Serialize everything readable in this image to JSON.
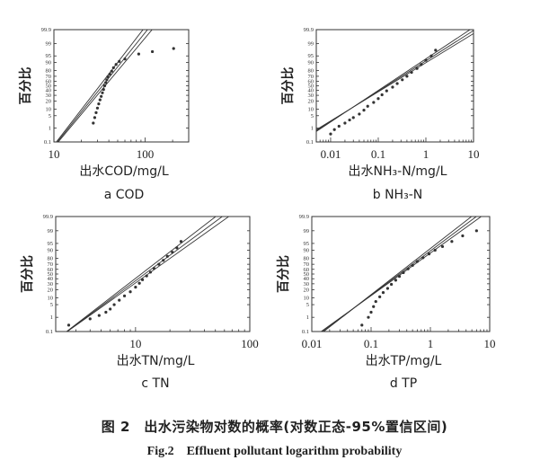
{
  "figure": {
    "caption_cn": "图 2　出水污染物对数的概率(对数正态-95%置信区间)",
    "caption_en": "Fig.2　Effluent pollutant logarithm probability"
  },
  "chart_data": [
    {
      "type": "scatter",
      "subtitle": "a COD",
      "xlabel": "出水COD/mg/L",
      "ylabel": "百分比",
      "x_scale": "log",
      "y_scale": "normal-probability",
      "xlim": [
        10,
        300
      ],
      "ylim": [
        0.1,
        99.9
      ],
      "x_ticks": [
        10,
        100
      ],
      "x_tick_labels": [
        "10",
        "100"
      ],
      "y_ticks": [
        0.1,
        1,
        5,
        10,
        20,
        30,
        40,
        50,
        60,
        70,
        80,
        90,
        95,
        99,
        99.9
      ],
      "y_tick_labels": [
        "0.1",
        "1",
        "5",
        "10",
        "20",
        "30",
        "40",
        "50",
        "60",
        "70",
        "80",
        "90",
        "95",
        "99",
        "99.9"
      ],
      "fit": {
        "median": 34,
        "sigma_log10": 0.16
      },
      "points": [
        [
          27,
          2
        ],
        [
          28,
          4
        ],
        [
          29,
          7
        ],
        [
          30,
          11
        ],
        [
          31,
          16
        ],
        [
          32,
          22
        ],
        [
          33,
          28
        ],
        [
          34,
          35
        ],
        [
          35,
          42
        ],
        [
          36,
          50
        ],
        [
          37,
          57
        ],
        [
          38,
          63
        ],
        [
          39,
          69
        ],
        [
          41,
          74
        ],
        [
          43,
          79
        ],
        [
          45,
          84
        ],
        [
          48,
          88
        ],
        [
          52,
          91
        ],
        [
          60,
          93
        ],
        [
          85,
          96
        ],
        [
          120,
          97
        ],
        [
          205,
          98
        ]
      ]
    },
    {
      "type": "scatter",
      "subtitle": "b NH₃-N",
      "xlabel": "出水NH₃-N/mg/L",
      "ylabel": "百分比",
      "x_scale": "log",
      "y_scale": "normal-probability",
      "xlim": [
        0.005,
        10
      ],
      "ylim": [
        0.1,
        99.9
      ],
      "x_ticks": [
        0.01,
        0.1,
        1,
        10
      ],
      "x_tick_labels": [
        "0.01",
        "0.1",
        "1",
        "10"
      ],
      "y_ticks": [
        0.1,
        1,
        5,
        10,
        20,
        30,
        40,
        50,
        60,
        70,
        80,
        90,
        95,
        99,
        99.9
      ],
      "y_tick_labels": [
        "0.1",
        "1",
        "5",
        "10",
        "20",
        "30",
        "40",
        "50",
        "60",
        "70",
        "80",
        "90",
        "95",
        "99",
        "99.9"
      ],
      "fit": {
        "median": 0.15,
        "sigma_log10": 0.6
      },
      "points": [
        [
          0.01,
          0.4
        ],
        [
          0.012,
          0.8
        ],
        [
          0.015,
          1.3
        ],
        [
          0.02,
          2
        ],
        [
          0.025,
          3
        ],
        [
          0.03,
          4
        ],
        [
          0.04,
          6
        ],
        [
          0.05,
          9
        ],
        [
          0.06,
          13
        ],
        [
          0.08,
          18
        ],
        [
          0.1,
          24
        ],
        [
          0.12,
          31
        ],
        [
          0.15,
          39
        ],
        [
          0.2,
          47
        ],
        [
          0.25,
          55
        ],
        [
          0.32,
          63
        ],
        [
          0.4,
          70
        ],
        [
          0.5,
          77
        ],
        [
          0.65,
          83
        ],
        [
          0.8,
          88
        ],
        [
          1.0,
          92
        ],
        [
          1.3,
          95
        ],
        [
          1.6,
          97.5
        ]
      ]
    },
    {
      "type": "scatter",
      "subtitle": "c TN",
      "xlabel": "出水TN/mg/L",
      "ylabel": "百分比",
      "x_scale": "log",
      "y_scale": "normal-probability",
      "xlim": [
        2,
        100
      ],
      "ylim": [
        0.1,
        99.9
      ],
      "x_ticks": [
        10,
        100
      ],
      "x_tick_labels": [
        "10",
        "100"
      ],
      "y_ticks": [
        0.1,
        1,
        5,
        10,
        20,
        30,
        40,
        50,
        60,
        70,
        80,
        90,
        95,
        99,
        99.9
      ],
      "y_tick_labels": [
        "0.1",
        "1",
        "5",
        "10",
        "20",
        "30",
        "40",
        "50",
        "60",
        "70",
        "80",
        "90",
        "95",
        "99",
        "99.9"
      ],
      "fit": {
        "median": 12,
        "sigma_log10": 0.22
      },
      "points": [
        [
          2.6,
          0.3
        ],
        [
          4,
          0.8
        ],
        [
          4.8,
          1.3
        ],
        [
          5.5,
          2
        ],
        [
          6,
          3
        ],
        [
          6.5,
          5
        ],
        [
          7.2,
          8
        ],
        [
          8,
          12
        ],
        [
          9,
          17
        ],
        [
          10,
          24
        ],
        [
          10.8,
          31
        ],
        [
          11.5,
          38
        ],
        [
          12.5,
          46
        ],
        [
          13.5,
          54
        ],
        [
          14.5,
          62
        ],
        [
          16,
          70
        ],
        [
          17.5,
          77
        ],
        [
          19,
          83
        ],
        [
          21,
          88
        ],
        [
          23,
          92
        ],
        [
          25,
          96
        ]
      ]
    },
    {
      "type": "scatter",
      "subtitle": "d TP",
      "xlabel": "出水TP/mg/L",
      "ylabel": "百分比",
      "x_scale": "log",
      "y_scale": "normal-probability",
      "xlim": [
        0.01,
        10
      ],
      "ylim": [
        0.1,
        99.9
      ],
      "x_ticks": [
        0.01,
        0.1,
        1,
        10
      ],
      "x_tick_labels": [
        "0.01",
        "0.1",
        "1",
        "10"
      ],
      "y_ticks": [
        0.1,
        1,
        5,
        10,
        20,
        30,
        40,
        50,
        60,
        70,
        80,
        90,
        95,
        99,
        99.9
      ],
      "y_tick_labels": [
        "0.1",
        "1",
        "5",
        "10",
        "20",
        "30",
        "40",
        "50",
        "60",
        "70",
        "80",
        "90",
        "95",
        "99",
        "99.9"
      ],
      "fit": {
        "median": 0.3,
        "sigma_log10": 0.42
      },
      "points": [
        [
          0.07,
          0.3
        ],
        [
          0.09,
          1
        ],
        [
          0.1,
          2
        ],
        [
          0.11,
          4
        ],
        [
          0.12,
          7
        ],
        [
          0.14,
          11
        ],
        [
          0.16,
          16
        ],
        [
          0.19,
          22
        ],
        [
          0.22,
          29
        ],
        [
          0.26,
          37
        ],
        [
          0.3,
          45
        ],
        [
          0.35,
          53
        ],
        [
          0.42,
          61
        ],
        [
          0.5,
          68
        ],
        [
          0.6,
          75
        ],
        [
          0.75,
          81
        ],
        [
          0.95,
          86
        ],
        [
          1.2,
          90
        ],
        [
          1.6,
          93
        ],
        [
          2.3,
          96
        ],
        [
          3.5,
          98
        ],
        [
          6,
          99
        ]
      ]
    }
  ]
}
